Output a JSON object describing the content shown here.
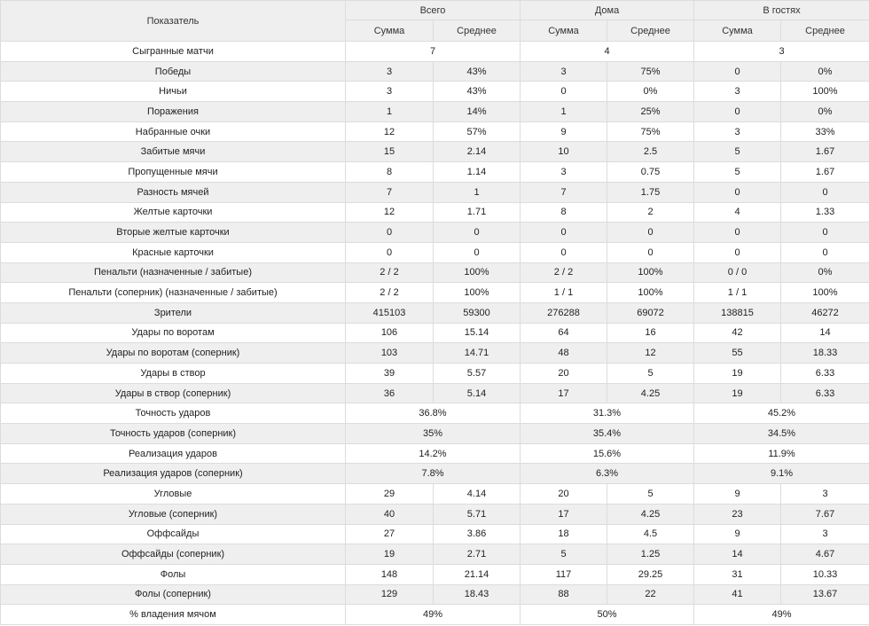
{
  "header": {
    "metric": "Показатель",
    "groups": [
      "Всего",
      "Дома",
      "В гостях"
    ],
    "sum": "Сумма",
    "avg": "Среднее"
  },
  "rows": [
    {
      "label": "Сыгранные матчи",
      "merged": true,
      "v": [
        "7",
        "4",
        "3"
      ]
    },
    {
      "label": "Победы",
      "v": [
        "3",
        "43%",
        "3",
        "75%",
        "0",
        "0%"
      ]
    },
    {
      "label": "Ничьи",
      "v": [
        "3",
        "43%",
        "0",
        "0%",
        "3",
        "100%"
      ]
    },
    {
      "label": "Поражения",
      "v": [
        "1",
        "14%",
        "1",
        "25%",
        "0",
        "0%"
      ]
    },
    {
      "label": "Набранные очки",
      "v": [
        "12",
        "57%",
        "9",
        "75%",
        "3",
        "33%"
      ]
    },
    {
      "label": "Забитые мячи",
      "v": [
        "15",
        "2.14",
        "10",
        "2.5",
        "5",
        "1.67"
      ]
    },
    {
      "label": "Пропущенные мячи",
      "v": [
        "8",
        "1.14",
        "3",
        "0.75",
        "5",
        "1.67"
      ]
    },
    {
      "label": "Разность мячей",
      "v": [
        "7",
        "1",
        "7",
        "1.75",
        "0",
        "0"
      ]
    },
    {
      "label": "Желтые карточки",
      "v": [
        "12",
        "1.71",
        "8",
        "2",
        "4",
        "1.33"
      ]
    },
    {
      "label": "Вторые желтые карточки",
      "v": [
        "0",
        "0",
        "0",
        "0",
        "0",
        "0"
      ]
    },
    {
      "label": "Красные карточки",
      "v": [
        "0",
        "0",
        "0",
        "0",
        "0",
        "0"
      ]
    },
    {
      "label": "Пенальти (назначенные / забитые)",
      "v": [
        "2 / 2",
        "100%",
        "2 / 2",
        "100%",
        "0 / 0",
        "0%"
      ]
    },
    {
      "label": "Пенальти (соперник) (назначенные / забитые)",
      "v": [
        "2 / 2",
        "100%",
        "1 / 1",
        "100%",
        "1 / 1",
        "100%"
      ]
    },
    {
      "label": "Зрители",
      "v": [
        "415103",
        "59300",
        "276288",
        "69072",
        "138815",
        "46272"
      ]
    },
    {
      "label": "Удары по воротам",
      "v": [
        "106",
        "15.14",
        "64",
        "16",
        "42",
        "14"
      ]
    },
    {
      "label": "Удары по воротам (соперник)",
      "v": [
        "103",
        "14.71",
        "48",
        "12",
        "55",
        "18.33"
      ]
    },
    {
      "label": "Удары в створ",
      "v": [
        "39",
        "5.57",
        "20",
        "5",
        "19",
        "6.33"
      ]
    },
    {
      "label": "Удары в створ (соперник)",
      "v": [
        "36",
        "5.14",
        "17",
        "4.25",
        "19",
        "6.33"
      ]
    },
    {
      "label": "Точность ударов",
      "merged": true,
      "v": [
        "36.8%",
        "31.3%",
        "45.2%"
      ]
    },
    {
      "label": "Точность ударов (соперник)",
      "merged": true,
      "v": [
        "35%",
        "35.4%",
        "34.5%"
      ]
    },
    {
      "label": "Реализация ударов",
      "merged": true,
      "v": [
        "14.2%",
        "15.6%",
        "11.9%"
      ]
    },
    {
      "label": "Реализация ударов (соперник)",
      "merged": true,
      "v": [
        "7.8%",
        "6.3%",
        "9.1%"
      ]
    },
    {
      "label": "Угловые",
      "v": [
        "29",
        "4.14",
        "20",
        "5",
        "9",
        "3"
      ]
    },
    {
      "label": "Угловые (соперник)",
      "v": [
        "40",
        "5.71",
        "17",
        "4.25",
        "23",
        "7.67"
      ]
    },
    {
      "label": "Оффсайды",
      "v": [
        "27",
        "3.86",
        "18",
        "4.5",
        "9",
        "3"
      ]
    },
    {
      "label": "Оффсайды (соперник)",
      "v": [
        "19",
        "2.71",
        "5",
        "1.25",
        "14",
        "4.67"
      ]
    },
    {
      "label": "Фолы",
      "v": [
        "148",
        "21.14",
        "117",
        "29.25",
        "31",
        "10.33"
      ]
    },
    {
      "label": "Фолы (соперник)",
      "v": [
        "129",
        "18.43",
        "88",
        "22",
        "41",
        "13.67"
      ]
    },
    {
      "label": "% владения мячом",
      "merged": true,
      "v": [
        "49%",
        "50%",
        "49%"
      ]
    }
  ]
}
